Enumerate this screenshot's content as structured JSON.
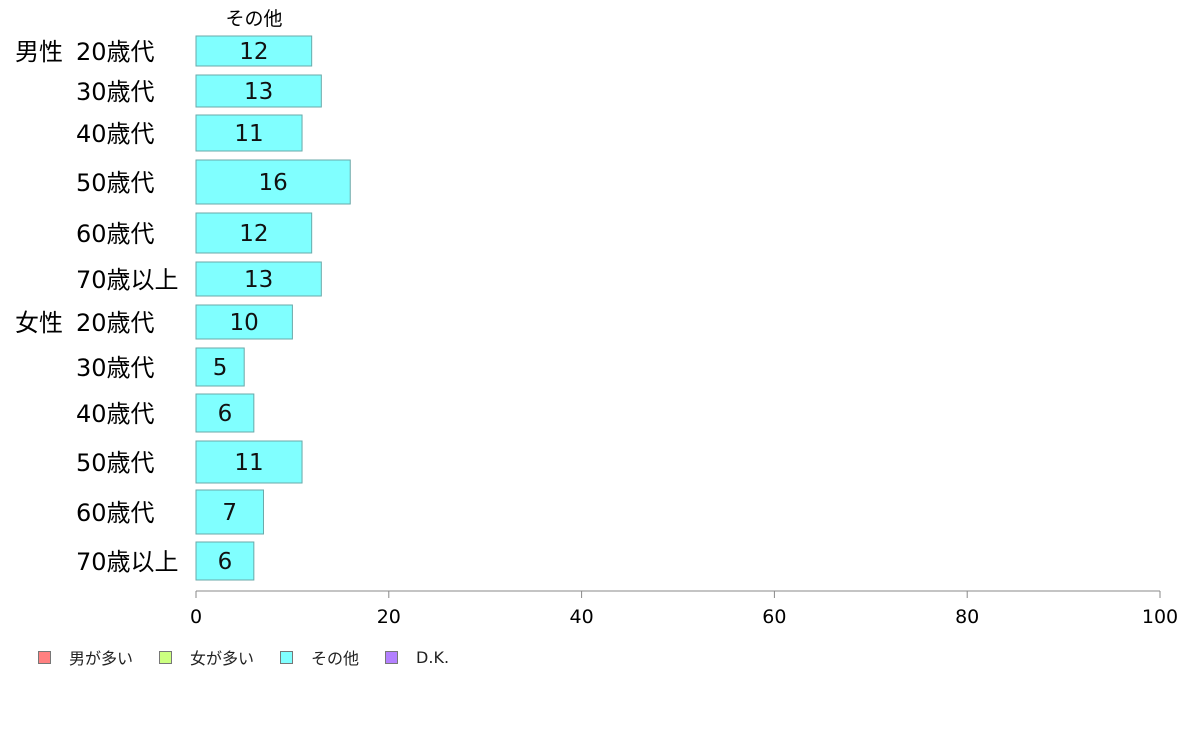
{
  "chart_data": {
    "type": "bar",
    "orientation": "horizontal",
    "stacked": true,
    "column_header": "その他",
    "groups": [
      "男性",
      "女性"
    ],
    "categories": [
      {
        "group": "男性",
        "label": "20歳代"
      },
      {
        "group": "",
        "label": "30歳代"
      },
      {
        "group": "",
        "label": "40歳代"
      },
      {
        "group": "",
        "label": "50歳代"
      },
      {
        "group": "",
        "label": "60歳代"
      },
      {
        "group": "",
        "label": "70歳以上"
      },
      {
        "group": "女性",
        "label": "20歳代"
      },
      {
        "group": "",
        "label": "30歳代"
      },
      {
        "group": "",
        "label": "40歳代"
      },
      {
        "group": "",
        "label": "50歳代"
      },
      {
        "group": "",
        "label": "60歳代"
      },
      {
        "group": "",
        "label": "70歳以上"
      }
    ],
    "series": [
      {
        "name": "男が多い",
        "color": "#ff8080",
        "values": [
          0,
          0,
          0,
          0,
          0,
          0,
          0,
          0,
          0,
          0,
          0,
          0
        ]
      },
      {
        "name": "女が多い",
        "color": "#ccff80",
        "values": [
          0,
          0,
          0,
          0,
          0,
          0,
          0,
          0,
          0,
          0,
          0,
          0
        ]
      },
      {
        "name": "その他",
        "color": "#80ffff",
        "values": [
          12,
          13,
          11,
          16,
          12,
          13,
          10,
          5,
          6,
          11,
          7,
          6
        ]
      },
      {
        "name": "D.K.",
        "color": "#b380ff",
        "values": [
          0,
          0,
          0,
          0,
          0,
          0,
          0,
          0,
          0,
          0,
          0,
          0
        ]
      }
    ],
    "data_labels": [
      "12",
      "13",
      "11",
      "16",
      "12",
      "13",
      "10",
      "5",
      "6",
      "11",
      "7",
      "6"
    ],
    "xlim": [
      0,
      100
    ],
    "xticks": [
      0,
      20,
      40,
      60,
      80,
      100
    ],
    "legend_position": "bottom-left",
    "grid": false
  }
}
